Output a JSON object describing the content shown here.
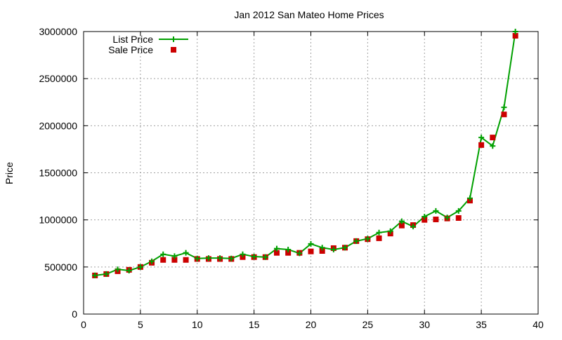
{
  "chart_data": {
    "type": "line",
    "title": "Jan 2012 San Mateo Home Prices",
    "xlabel": "",
    "ylabel": "Price",
    "xlim": [
      0,
      40
    ],
    "ylim": [
      0,
      3000000
    ],
    "x_ticks": [
      0,
      5,
      10,
      15,
      20,
      25,
      30,
      35,
      40
    ],
    "y_ticks": [
      0,
      500000,
      1000000,
      1500000,
      2000000,
      2500000,
      3000000
    ],
    "grid": true,
    "legend_position": "top-left",
    "x": [
      1,
      2,
      3,
      4,
      5,
      6,
      7,
      8,
      9,
      10,
      11,
      12,
      13,
      14,
      15,
      16,
      17,
      18,
      19,
      20,
      21,
      22,
      23,
      24,
      25,
      26,
      27,
      28,
      29,
      30,
      31,
      32,
      33,
      34,
      35,
      36,
      37,
      38
    ],
    "series": [
      {
        "name": "List Price",
        "style": "linespoints",
        "color": "#00a000",
        "values": [
          410000,
          425000,
          475000,
          462000,
          500000,
          560000,
          635000,
          615000,
          650000,
          590000,
          595000,
          595000,
          590000,
          635000,
          610000,
          605000,
          695000,
          685000,
          645000,
          745000,
          705000,
          685000,
          705000,
          775000,
          800000,
          865000,
          880000,
          985000,
          930000,
          1035000,
          1095000,
          1025000,
          1095000,
          1230000,
          1875000,
          1785000,
          2195000,
          3000000
        ]
      },
      {
        "name": "Sale Price",
        "style": "points",
        "color": "#cc0000",
        "values": [
          410000,
          425000,
          455000,
          470000,
          500000,
          545000,
          575000,
          575000,
          575000,
          585000,
          585000,
          585000,
          585000,
          605000,
          605000,
          605000,
          650000,
          650000,
          650000,
          665000,
          670000,
          700000,
          705000,
          775000,
          795000,
          805000,
          855000,
          940000,
          945000,
          1000000,
          1005000,
          1015000,
          1020000,
          1205000,
          1795000,
          1875000,
          2120000,
          2955000
        ]
      }
    ]
  }
}
